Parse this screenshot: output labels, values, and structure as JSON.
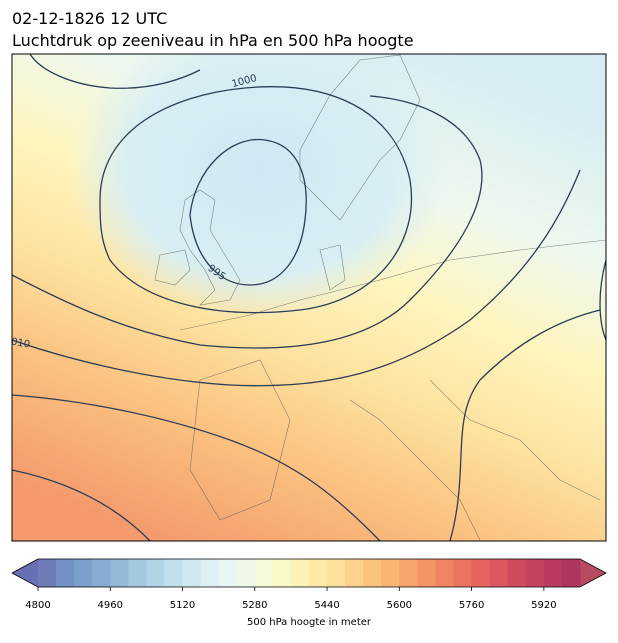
{
  "title": "02-12-1826 12 UTC",
  "subtitle": "Luchtdruk op zeeniveau in hPa en 500 hPa hoogte",
  "contour_labels": [
    "1000",
    "995",
    "010"
  ],
  "colorbar": {
    "label": "500 hPa hoogte in meter",
    "lim": [
      4800,
      6000
    ],
    "ticks": [
      4800,
      4960,
      5120,
      5280,
      5440,
      5600,
      5760,
      5920
    ],
    "under_color": "#6670b2",
    "over_color": "#b94a63",
    "colors": [
      "#6f7cb8",
      "#7390c4",
      "#7a9fcb",
      "#86acd1",
      "#93bad8",
      "#a3c8df",
      "#b2d5e6",
      "#c1e0ec",
      "#d0e9f1",
      "#ddf0f5",
      "#e9f5f3",
      "#f0f8e8",
      "#f6fadb",
      "#fcf9c8",
      "#fef3b6",
      "#feeaa6",
      "#fde09a",
      "#fcd28c",
      "#fbc47e",
      "#f9b574",
      "#f7a56c",
      "#f49566",
      "#ef8462",
      "#ea7460",
      "#e3655e",
      "#da585e",
      "#cf4c5e",
      "#c4435f",
      "#b93b5f",
      "#ae355e"
    ]
  }
}
